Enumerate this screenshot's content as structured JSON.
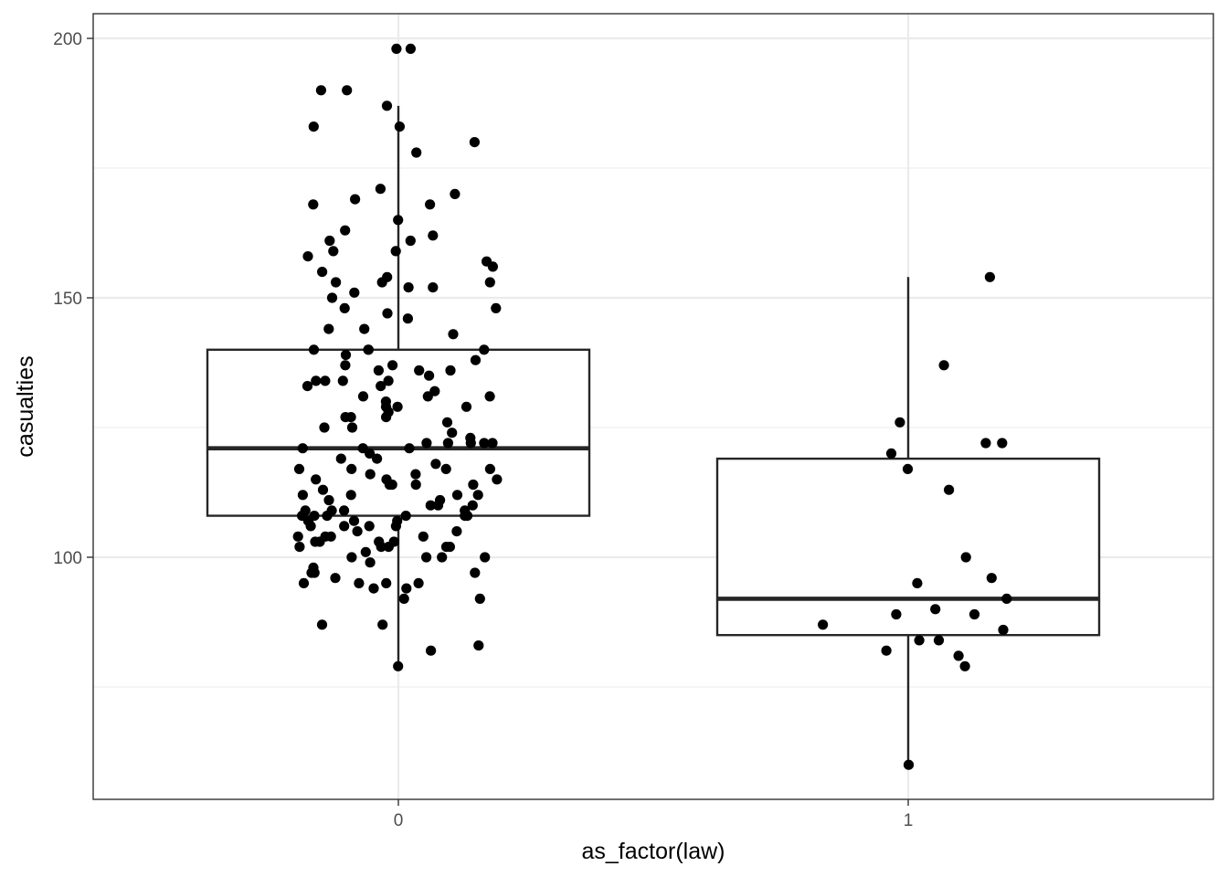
{
  "chart_data": {
    "type": "boxplot",
    "xlabel": "as_factor(law)",
    "ylabel": "casualties",
    "ylim": [
      55,
      205
    ],
    "y_ticks": [
      100,
      150,
      200
    ],
    "y_minor_ticks": [
      75,
      125,
      175
    ],
    "grid": true,
    "categories": [
      "0",
      "1"
    ],
    "colors": {
      "box": "#262626",
      "point": "#000000",
      "grid": "#ebebeb",
      "panel_border": "#333333"
    },
    "boxes": [
      {
        "category": "0",
        "q1": 108,
        "median": 121,
        "q3": 140,
        "whisker_low": 79,
        "whisker_high": 187
      },
      {
        "category": "1",
        "q1": 85,
        "median": 92,
        "q3": 119,
        "whisker_low": 60,
        "whisker_high": 154
      }
    ],
    "points": [
      {
        "category": "0",
        "values": [
          198,
          198,
          190,
          190,
          187,
          183,
          183,
          180,
          178,
          171,
          169,
          170,
          168,
          168,
          165,
          163,
          162,
          161,
          161,
          159,
          159,
          158,
          157,
          156,
          155,
          154,
          153,
          153,
          153,
          152,
          152,
          151,
          150,
          148,
          147,
          148,
          146,
          144,
          144,
          143,
          140,
          140,
          140,
          140,
          139,
          138,
          137,
          137,
          136,
          136,
          136,
          135,
          134,
          134,
          134,
          134,
          133,
          133,
          132,
          131,
          131,
          131,
          130,
          129,
          129,
          129,
          128,
          127,
          127,
          127,
          126,
          125,
          125,
          124,
          123,
          122,
          122,
          122,
          122,
          122,
          121,
          121,
          121,
          120,
          119,
          119,
          118,
          117,
          117,
          117,
          117,
          116,
          116,
          115,
          115,
          115,
          114,
          114,
          114,
          114,
          113,
          112,
          112,
          112,
          112,
          111,
          111,
          110,
          110,
          110,
          109,
          109,
          109,
          109,
          108,
          108,
          108,
          108,
          108,
          108,
          107,
          107,
          107,
          106,
          106,
          106,
          106,
          105,
          105,
          104,
          104,
          104,
          104,
          103,
          103,
          103,
          103,
          102,
          102,
          102,
          102,
          102,
          101,
          100,
          100,
          100,
          100,
          99,
          98,
          97,
          97,
          97,
          96,
          95,
          95,
          95,
          95,
          94,
          94,
          92,
          92,
          87,
          87,
          83,
          82,
          79
        ]
      },
      {
        "category": "1",
        "values": [
          154,
          137,
          126,
          122,
          122,
          120,
          117,
          113,
          100,
          96,
          95,
          92,
          90,
          89,
          89,
          87,
          86,
          84,
          84,
          82,
          81,
          79,
          60
        ]
      }
    ]
  }
}
